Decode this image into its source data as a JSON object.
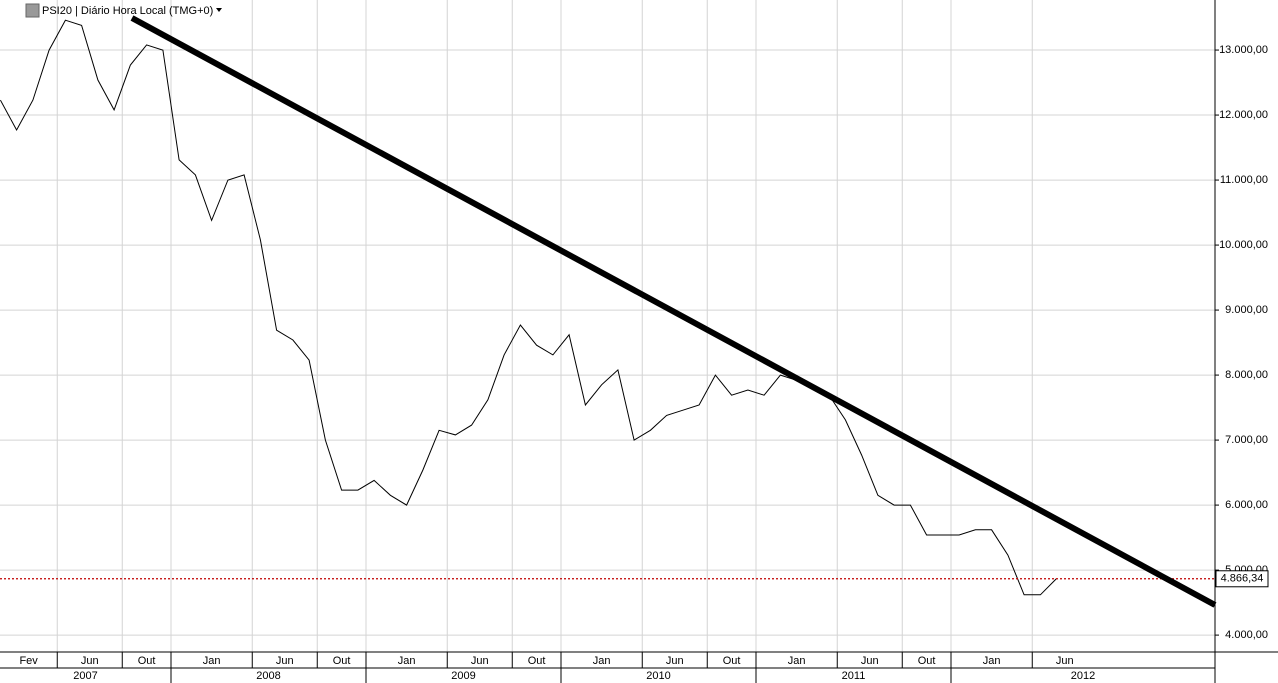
{
  "chart_data": {
    "type": "line",
    "title": "PSI20 | Diário Hora Local (TMG+0)",
    "color": "#000000",
    "x": [
      "2007-02",
      "2007-03",
      "2007-04",
      "2007-05",
      "2007-06",
      "2007-07",
      "2007-08",
      "2007-09",
      "2007-10",
      "2007-11",
      "2007-12",
      "2008-01",
      "2008-02",
      "2008-03",
      "2008-04",
      "2008-05",
      "2008-06",
      "2008-07",
      "2008-08",
      "2008-09",
      "2008-10",
      "2008-11",
      "2008-12",
      "2009-01",
      "2009-02",
      "2009-03",
      "2009-04",
      "2009-05",
      "2009-06",
      "2009-07",
      "2009-08",
      "2009-09",
      "2009-10",
      "2009-11",
      "2009-12",
      "2010-01",
      "2010-02",
      "2010-03",
      "2010-04",
      "2010-05",
      "2010-06",
      "2010-07",
      "2010-08",
      "2010-09",
      "2010-10",
      "2010-11",
      "2010-12",
      "2011-01",
      "2011-02",
      "2011-03",
      "2011-04",
      "2011-05",
      "2011-06",
      "2011-07",
      "2011-08",
      "2011-09",
      "2011-10",
      "2011-11",
      "2011-12",
      "2012-01",
      "2012-02",
      "2012-03",
      "2012-04",
      "2012-05",
      "2012-06",
      "2012-07"
    ],
    "values": [
      12230,
      11770,
      12230,
      13000,
      13460,
      13380,
      12540,
      12080,
      12770,
      13080,
      13000,
      11310,
      11080,
      10380,
      11000,
      11080,
      10080,
      8690,
      8540,
      8230,
      7000,
      6230,
      6230,
      6380,
      6150,
      6000,
      6540,
      7150,
      7080,
      7230,
      7620,
      8310,
      8770,
      8460,
      8310,
      8620,
      7540,
      7850,
      8080,
      7000,
      7150,
      7380,
      7460,
      7540,
      8000,
      7690,
      7770,
      7690,
      8000,
      7920,
      7850,
      7690,
      7310,
      6770,
      6150,
      6000,
      6000,
      5540,
      5540,
      5540,
      5620,
      5620,
      5230,
      4620,
      4620,
      4870
    ],
    "ylim": [
      3740,
      13770
    ],
    "yticks": [
      {
        "value": 4000,
        "label": "4.000,00"
      },
      {
        "value": 5000,
        "label": "5.000,00"
      },
      {
        "value": 6000,
        "label": "6.000,00"
      },
      {
        "value": 7000,
        "label": "7.000,00"
      },
      {
        "value": 8000,
        "label": "8.000,00"
      },
      {
        "value": 9000,
        "label": "9.000,00"
      },
      {
        "value": 10000,
        "label": "10.000,00"
      },
      {
        "value": 11000,
        "label": "11.000,00"
      },
      {
        "value": 12000,
        "label": "12.000,00"
      },
      {
        "value": 13000,
        "label": "13.000,00"
      }
    ],
    "xticks": [
      {
        "value": "2007-02",
        "label": "Fev"
      },
      {
        "value": "2007-06",
        "label": "Jun"
      },
      {
        "value": "2007-10",
        "label": "Out"
      },
      {
        "value": "2008-01",
        "label": "Jan"
      },
      {
        "value": "2008-06",
        "label": "Jun"
      },
      {
        "value": "2008-10",
        "label": "Out"
      },
      {
        "value": "2009-01",
        "label": "Jan"
      },
      {
        "value": "2009-06",
        "label": "Jun"
      },
      {
        "value": "2009-10",
        "label": "Out"
      },
      {
        "value": "2010-01",
        "label": "Jan"
      },
      {
        "value": "2010-06",
        "label": "Jun"
      },
      {
        "value": "2010-10",
        "label": "Out"
      },
      {
        "value": "2011-01",
        "label": "Jan"
      },
      {
        "value": "2011-06",
        "label": "Jun"
      },
      {
        "value": "2011-10",
        "label": "Out"
      },
      {
        "value": "2012-01",
        "label": "Jan"
      },
      {
        "value": "2012-06",
        "label": "Jun"
      }
    ],
    "years": [
      "2007",
      "2008",
      "2009",
      "2010",
      "2011",
      "2012"
    ],
    "reference_line": {
      "value": 4866.34,
      "label": "4.866,34",
      "color": "#c00000"
    },
    "grid": true
  }
}
